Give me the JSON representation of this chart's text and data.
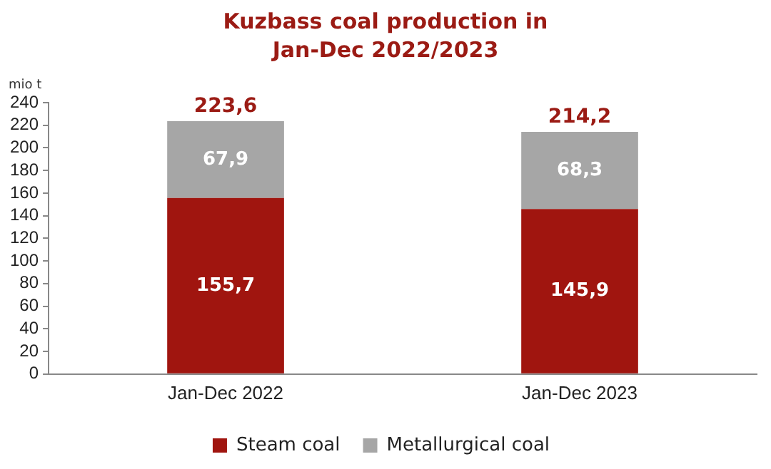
{
  "chart_data": {
    "type": "bar",
    "title": "Kuzbass coal production  in Jan-Dec 2022/2023",
    "ylabel": "mio t",
    "categories": [
      "Jan-Dec 2022",
      "Jan-Dec 2023"
    ],
    "stacked": true,
    "series": [
      {
        "name": "Steam coal",
        "color": "#a0150f",
        "values": [
          155.7,
          145.9
        ],
        "value_labels": [
          "155,7",
          "145,9"
        ]
      },
      {
        "name": "Metallurgical coal",
        "color": "#a6a6a6",
        "values": [
          67.9,
          68.3
        ],
        "value_labels": [
          "67,9",
          "68,3"
        ]
      }
    ],
    "totals": [
      "223,6",
      "214,2"
    ],
    "ylim": [
      0,
      240
    ],
    "yticks": [
      0,
      20,
      40,
      60,
      80,
      100,
      120,
      140,
      160,
      180,
      200,
      220,
      240
    ],
    "grid": false,
    "legend": "bottom"
  }
}
